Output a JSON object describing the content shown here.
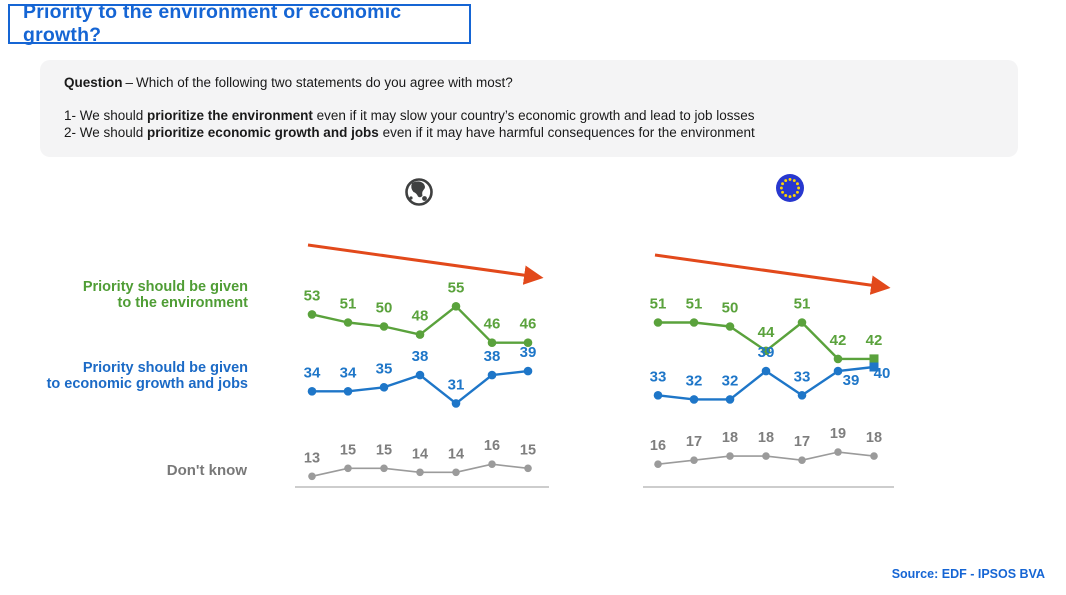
{
  "title": "Priority to the environment or economic growth?",
  "question": {
    "label": "Question",
    "dash": "–",
    "intro": "Which of the following two statements do you agree with most?",
    "statements": [
      {
        "prefix": "1- We should ",
        "bold": "prioritize the environment",
        "suffix": " even if it may slow your country’s economic growth and lead to job losses"
      },
      {
        "prefix": "2- We should ",
        "bold": "prioritize economic growth and jobs",
        "suffix": " even if it may have harmful consequences for the environment"
      }
    ]
  },
  "series_labels": {
    "environment_line1": "Priority should be given",
    "environment_line2": "to the environment",
    "economy_line1": "Priority should be given",
    "economy_line2": "to economic growth and jobs",
    "dont_know": "Don't know"
  },
  "colors": {
    "environment": "#5aa23c",
    "economy": "#1e76c8",
    "dont_know_line": "#9b9b9b",
    "dont_know_label": "#7e7e7e",
    "trend_arrow": "#e2491b",
    "title_blue": "#1565d4",
    "source_blue": "#1565d4",
    "eu_flag_blue": "#2838cf",
    "eu_star_yellow": "#ffd400",
    "globe_gray": "#3f4040"
  },
  "chart_data": [
    {
      "type": "line",
      "panel": "world",
      "icon": "globe-icon",
      "trend_annotation": "declining-arrow",
      "ylim": [
        0,
        60
      ],
      "grid": false,
      "legend_position": "left-of-charts",
      "series": [
        {
          "key": "environment",
          "name": "Priority should be given to the environment",
          "values": [
            53,
            51,
            50,
            48,
            55,
            46,
            46
          ]
        },
        {
          "key": "economy",
          "name": "Priority should be given to economic growth and jobs",
          "values": [
            34,
            34,
            35,
            38,
            31,
            38,
            39
          ]
        },
        {
          "key": "dont_know",
          "name": "Don't know",
          "values": [
            13,
            15,
            15,
            14,
            14,
            16,
            15
          ]
        }
      ]
    },
    {
      "type": "line",
      "panel": "european-union",
      "icon": "eu-flag-icon",
      "trend_annotation": "declining-arrow",
      "ylim": [
        0,
        60
      ],
      "grid": false,
      "legend_position": "left-of-charts",
      "series": [
        {
          "key": "environment",
          "name": "Priority should be given to the environment",
          "values": [
            51,
            51,
            50,
            44,
            51,
            42,
            42
          ]
        },
        {
          "key": "economy",
          "name": "Priority should be given to economic growth and jobs",
          "values": [
            33,
            32,
            32,
            39,
            33,
            39,
            40
          ]
        },
        {
          "key": "dont_know",
          "name": "Don't know",
          "values": [
            16,
            17,
            18,
            18,
            17,
            19,
            18
          ]
        }
      ]
    }
  ],
  "source": {
    "label": "Source:",
    "value": "EDF - IPSOS BVA"
  }
}
